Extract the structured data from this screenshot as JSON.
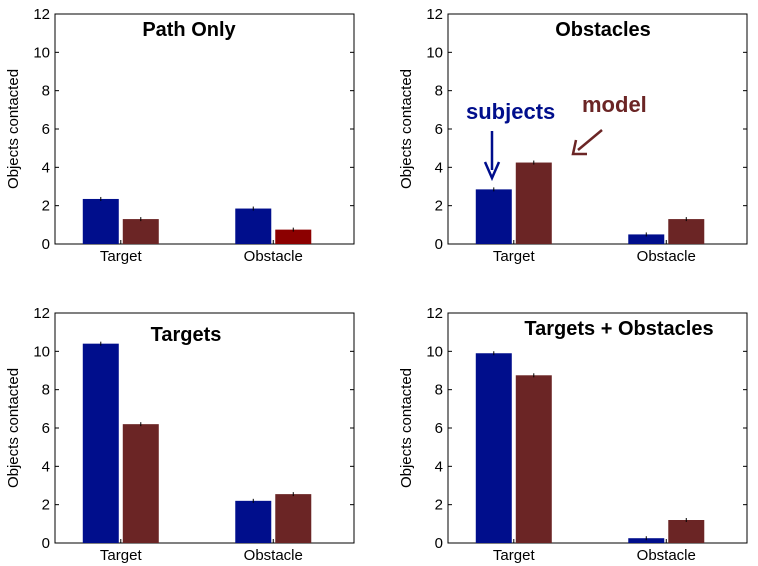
{
  "colors": {
    "subjects": "#000E8C",
    "model": "#6B2525",
    "model_highlight": "#8C0000",
    "axis": "#000000"
  },
  "annotations": {
    "subjects_label": "subjects",
    "model_label": "model"
  },
  "chart_data": [
    {
      "type": "bar",
      "title": "Path Only",
      "ylabel": "Objects contacted",
      "categories": [
        "Target",
        "Obstacle"
      ],
      "ylim": [
        0,
        12
      ],
      "yticks": [
        0,
        2,
        4,
        6,
        8,
        10,
        12
      ],
      "series": [
        {
          "values": [
            2.35,
            1.85
          ]
        },
        {
          "values": [
            1.3,
            0.75
          ]
        }
      ]
    },
    {
      "type": "bar",
      "title": "Obstacles",
      "ylabel": "Objects contacted",
      "categories": [
        "Target",
        "Obstacle"
      ],
      "ylim": [
        0,
        12
      ],
      "yticks": [
        0,
        2,
        4,
        6,
        8,
        10,
        12
      ],
      "series": [
        {
          "values": [
            2.85,
            0.5
          ]
        },
        {
          "values": [
            4.25,
            1.3
          ]
        }
      ]
    },
    {
      "type": "bar",
      "title": "Targets",
      "ylabel": "Objects contacted",
      "categories": [
        "Target",
        "Obstacle"
      ],
      "ylim": [
        0,
        12
      ],
      "yticks": [
        0,
        2,
        4,
        6,
        8,
        10,
        12
      ],
      "series": [
        {
          "values": [
            10.4,
            2.2
          ]
        },
        {
          "values": [
            6.2,
            2.55
          ]
        }
      ]
    },
    {
      "type": "bar",
      "title": "Targets + Obstacles",
      "ylabel": "Objects contacted",
      "categories": [
        "Target",
        "Obstacle"
      ],
      "ylim": [
        0,
        12
      ],
      "yticks": [
        0,
        2,
        4,
        6,
        8,
        10,
        12
      ],
      "series": [
        {
          "values": [
            9.9,
            0.25
          ]
        },
        {
          "values": [
            8.75,
            1.2
          ]
        }
      ]
    }
  ]
}
